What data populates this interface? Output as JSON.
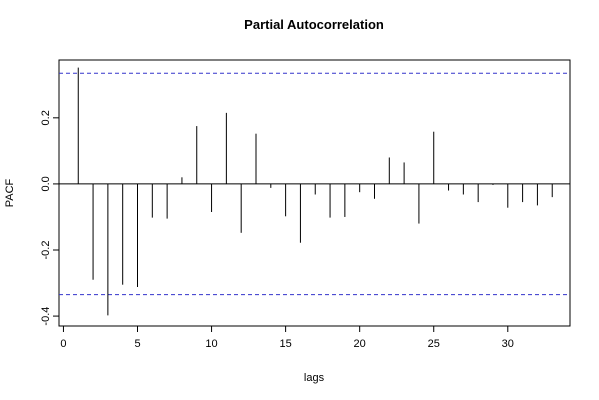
{
  "chart_data": {
    "type": "bar",
    "title": "Partial Autocorrelation",
    "xlabel": "lags",
    "ylabel": "PACF",
    "xlim": [
      -0.3,
      34.2
    ],
    "ylim": [
      -0.43,
      0.375
    ],
    "x_ticks": [
      0,
      5,
      10,
      15,
      20,
      25,
      30
    ],
    "y_ticks": [
      -0.4,
      -0.2,
      0.0,
      0.2
    ],
    "y_tick_labels": [
      "-0.4",
      "-0.2",
      "0.0",
      "0.2"
    ],
    "confidence_band": 0.335,
    "confidence_color": "#3333cc",
    "lags": [
      1,
      2,
      3,
      4,
      5,
      6,
      7,
      8,
      9,
      10,
      11,
      12,
      13,
      14,
      15,
      16,
      17,
      18,
      19,
      20,
      21,
      22,
      23,
      24,
      25,
      26,
      27,
      28,
      29,
      30,
      31,
      32,
      33
    ],
    "values": [
      0.352,
      -0.29,
      -0.398,
      -0.305,
      -0.312,
      -0.102,
      -0.105,
      0.02,
      0.175,
      -0.085,
      0.215,
      -0.148,
      0.152,
      -0.012,
      -0.098,
      -0.178,
      -0.032,
      -0.102,
      -0.1,
      -0.025,
      -0.045,
      0.08,
      0.065,
      -0.12,
      0.158,
      -0.02,
      -0.032,
      -0.055,
      -0.003,
      -0.072,
      -0.055,
      -0.065,
      -0.04
    ],
    "grid": false,
    "legend": "none"
  }
}
